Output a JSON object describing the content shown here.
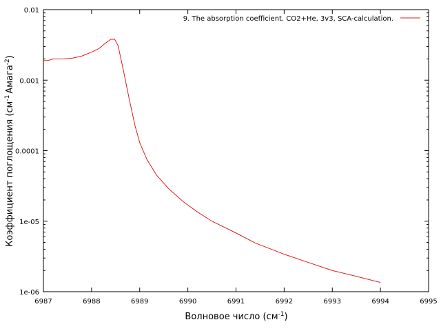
{
  "chart_data": {
    "type": "line",
    "xlabel": {
      "text": "Волновое число (см",
      "sup": "-1",
      "tail": ")"
    },
    "ylabel": {
      "text": "Коэффициент поглощения (см",
      "sup1": "-1",
      "mid": "Амага",
      "sup2": "-2",
      "tail": ")"
    },
    "xlim": [
      6987,
      6995
    ],
    "ylim": [
      1e-06,
      0.01
    ],
    "yscale": "log",
    "grid": false,
    "legend_position": "top-right",
    "x_ticks": [
      {
        "value": 6987,
        "label": "6987"
      },
      {
        "value": 6988,
        "label": "6988"
      },
      {
        "value": 6989,
        "label": "6989"
      },
      {
        "value": 6990,
        "label": "6990"
      },
      {
        "value": 6991,
        "label": "6991"
      },
      {
        "value": 6992,
        "label": "6992"
      },
      {
        "value": 6993,
        "label": "6993"
      },
      {
        "value": 6994,
        "label": "6994"
      },
      {
        "value": 6995,
        "label": "6995"
      }
    ],
    "y_ticks": [
      {
        "value": 1e-06,
        "label": "1e-06"
      },
      {
        "value": 1e-05,
        "label": "1e-05"
      },
      {
        "value": 0.0001,
        "label": "0.0001"
      },
      {
        "value": 0.001,
        "label": "0.001"
      },
      {
        "value": 0.01,
        "label": "0.01"
      }
    ],
    "series": [
      {
        "name": "9. The absorption coefficient. CO2+He, 3v3, SCA-calculation.",
        "color": "#e41a1c",
        "x": [
          6987.0,
          6987.1,
          6987.2,
          6987.4,
          6987.6,
          6987.8,
          6988.0,
          6988.15,
          6988.3,
          6988.4,
          6988.48,
          6988.55,
          6988.65,
          6988.78,
          6988.9,
          6989.0,
          6989.15,
          6989.35,
          6989.6,
          6989.9,
          6990.2,
          6990.5,
          6991.0,
          6991.4,
          6992.0,
          6992.5,
          6993.0,
          6993.5,
          6994.0
        ],
        "y": [
          0.0019,
          0.0019,
          0.002,
          0.002,
          0.00205,
          0.0022,
          0.0025,
          0.0028,
          0.0034,
          0.0038,
          0.0038,
          0.0031,
          0.0015,
          0.00055,
          0.00023,
          0.00013,
          7.5e-05,
          4.5e-05,
          2.9e-05,
          1.9e-05,
          1.35e-05,
          1e-05,
          6.8e-06,
          4.9e-06,
          3.4e-06,
          2.6e-06,
          2e-06,
          1.65e-06,
          1.35e-06
        ]
      }
    ]
  }
}
